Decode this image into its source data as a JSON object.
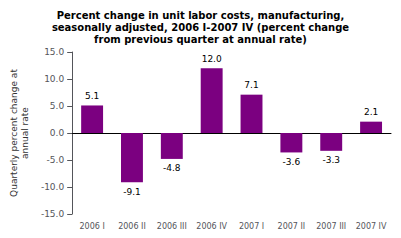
{
  "chart_data": {
    "type": "bar",
    "title": "Percent change in unit labor costs, manufacturing,\nseasonally adjusted, 2006 I-2007 IV (percent change\nfrom previous quarter at annual rate)",
    "categories": [
      "2006 I",
      "2006 II",
      "2006 III",
      "2006 IV",
      "2007 I",
      "2007 II",
      "2007 III",
      "2007 IV"
    ],
    "values": [
      5.1,
      -9.1,
      -4.8,
      12.0,
      7.1,
      -3.6,
      -3.3,
      2.1
    ],
    "value_labels": [
      "5.1",
      "-9.1",
      "-4.8",
      "12.0",
      "7.1",
      "-3.6",
      "-3.3",
      "2.1"
    ],
    "color": "#7b0080",
    "ylabel": "Quarterly percent change at\nannual rate",
    "ylim": [
      -15.0,
      15.0
    ],
    "yticks": [
      {
        "value": -15.0,
        "label": "-15.0"
      },
      {
        "value": -10.0,
        "label": "-10.0"
      },
      {
        "value": -5.0,
        "label": "-5.0"
      },
      {
        "value": 0.0,
        "label": "0.0"
      },
      {
        "value": 5.0,
        "label": "5.0"
      },
      {
        "value": 10.0,
        "label": "10.0"
      },
      {
        "value": 15.0,
        "label": "15.0"
      }
    ],
    "grid": false,
    "data_labels": true
  }
}
